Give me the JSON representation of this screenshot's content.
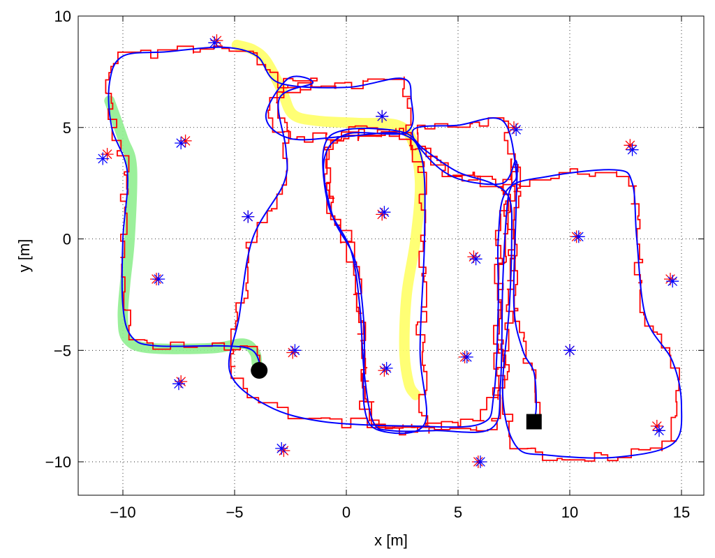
{
  "chart_data": {
    "type": "scatter",
    "xlabel": "x [m]",
    "ylabel": "y [m]",
    "xlim": [
      -12,
      16
    ],
    "ylim": [
      -11.5,
      10
    ],
    "grid": "dotted",
    "xticks": [
      -10,
      -5,
      0,
      5,
      10,
      15
    ],
    "yticks": [
      -10,
      -5,
      0,
      5,
      10
    ],
    "xtick_labels": [
      "−10",
      "−5",
      "0",
      "5",
      "10",
      "15"
    ],
    "ytick_labels": [
      "−10",
      "−5",
      "0",
      "5",
      "10"
    ],
    "colors": {
      "estimate": "#ff0000",
      "ground_truth": "#0000ff",
      "highlight_green": "#90ee90",
      "highlight_yellow": "#ffff66",
      "markers": "#000000"
    },
    "landmarks_blue": [
      [
        -5.9,
        8.8
      ],
      [
        -10.9,
        3.6
      ],
      [
        -7.4,
        4.3
      ],
      [
        -4.4,
        1.0
      ],
      [
        -8.4,
        -1.8
      ],
      [
        -7.5,
        -6.5
      ],
      [
        -2.9,
        -9.4
      ],
      [
        -2.3,
        -5.0
      ],
      [
        1.6,
        5.5
      ],
      [
        1.7,
        1.2
      ],
      [
        1.8,
        -5.8
      ],
      [
        5.8,
        -0.9
      ],
      [
        7.6,
        4.9
      ],
      [
        5.4,
        -5.3
      ],
      [
        6.0,
        -10.0
      ],
      [
        12.8,
        4.0
      ],
      [
        10.4,
        0.1
      ],
      [
        14.6,
        -1.9
      ],
      [
        10.0,
        -5.0
      ],
      [
        14.0,
        -8.6
      ]
    ],
    "landmarks_red": [
      [
        -5.8,
        8.9
      ],
      [
        -10.7,
        3.8
      ],
      [
        -7.2,
        4.4
      ],
      [
        -4.4,
        1.0
      ],
      [
        -8.5,
        -1.8
      ],
      [
        -7.4,
        -6.4
      ],
      [
        -2.8,
        -9.5
      ],
      [
        -2.4,
        -5.1
      ],
      [
        1.6,
        5.5
      ],
      [
        1.6,
        1.1
      ],
      [
        1.7,
        -5.9
      ],
      [
        5.7,
        -0.8
      ],
      [
        7.5,
        5.0
      ],
      [
        5.3,
        -5.3
      ],
      [
        5.9,
        -10.0
      ],
      [
        12.7,
        4.2
      ],
      [
        10.3,
        0.1
      ],
      [
        14.5,
        -1.8
      ],
      [
        10.0,
        -5.0
      ],
      [
        13.9,
        -8.4
      ]
    ],
    "ground_truth_path": [
      [
        -3.8,
        -5.9
      ],
      [
        -4.2,
        -5.0
      ],
      [
        -5.5,
        -4.8
      ],
      [
        -8.5,
        -4.8
      ],
      [
        -9.6,
        -4.4
      ],
      [
        -10.0,
        -3.0
      ],
      [
        -10.0,
        0.0
      ],
      [
        -9.8,
        3.0
      ],
      [
        -10.5,
        5.0
      ],
      [
        -10.6,
        7.0
      ],
      [
        -10.0,
        8.2
      ],
      [
        -8.0,
        8.4
      ],
      [
        -5.5,
        8.6
      ],
      [
        -4.0,
        8.2
      ],
      [
        -3.0,
        7.0
      ],
      [
        0.0,
        6.8
      ],
      [
        2.5,
        7.2
      ],
      [
        2.9,
        6.3
      ],
      [
        2.7,
        4.8
      ],
      [
        0.0,
        4.7
      ],
      [
        -1.0,
        3.5
      ],
      [
        -0.6,
        1.0
      ],
      [
        0.4,
        -1.0
      ],
      [
        0.8,
        -4.0
      ],
      [
        0.8,
        -7.5
      ],
      [
        1.5,
        -8.6
      ],
      [
        3.5,
        -8.3
      ],
      [
        3.3,
        -5.0
      ],
      [
        3.5,
        0.0
      ],
      [
        3.4,
        3.5
      ],
      [
        2.5,
        4.7
      ],
      [
        0.0,
        4.6
      ],
      [
        -2.5,
        4.5
      ],
      [
        -3.6,
        5.5
      ],
      [
        -2.6,
        7.2
      ],
      [
        -1.5,
        7.0
      ],
      [
        -3.0,
        6.3
      ],
      [
        -2.7,
        4.0
      ],
      [
        -2.8,
        2.5
      ],
      [
        -4.2,
        0.0
      ],
      [
        -4.8,
        -3.5
      ],
      [
        -5.2,
        -6.0
      ],
      [
        -3.5,
        -7.5
      ],
      [
        -1.0,
        -8.2
      ],
      [
        3.0,
        -8.4
      ],
      [
        6.0,
        -8.3
      ],
      [
        6.6,
        -7.0
      ],
      [
        6.8,
        -3.0
      ],
      [
        6.8,
        0.0
      ],
      [
        7.2,
        2.2
      ],
      [
        9.0,
        2.8
      ],
      [
        12.0,
        3.1
      ],
      [
        12.8,
        2.5
      ],
      [
        13.0,
        0.0
      ],
      [
        13.4,
        -3.5
      ],
      [
        14.6,
        -5.5
      ],
      [
        15.0,
        -7.5
      ],
      [
        14.6,
        -9.2
      ],
      [
        12.0,
        -9.8
      ],
      [
        9.0,
        -9.7
      ],
      [
        7.6,
        -9.3
      ],
      [
        7.0,
        -7.0
      ],
      [
        7.3,
        -3.0
      ],
      [
        7.4,
        0.0
      ],
      [
        7.3,
        1.8
      ],
      [
        6.5,
        2.5
      ],
      [
        5.0,
        3.0
      ],
      [
        3.5,
        4.0
      ],
      [
        2.5,
        4.8
      ],
      [
        0.0,
        4.9
      ],
      [
        -1.0,
        4.1
      ],
      [
        -0.8,
        1.5
      ],
      [
        0.2,
        -0.5
      ],
      [
        0.6,
        -3.0
      ],
      [
        0.8,
        -6.0
      ],
      [
        1.2,
        -8.2
      ],
      [
        2.0,
        -8.6
      ],
      [
        4.0,
        -8.6
      ],
      [
        6.5,
        -8.5
      ],
      [
        6.9,
        -6.5
      ],
      [
        7.0,
        -2.0
      ],
      [
        7.2,
        1.5
      ],
      [
        7.4,
        2.4
      ],
      [
        7.6,
        3.0
      ],
      [
        7.0,
        5.3
      ],
      [
        5.0,
        5.1
      ],
      [
        3.0,
        4.9
      ],
      [
        3.7,
        3.6
      ],
      [
        5.0,
        2.7
      ],
      [
        7.0,
        2.5
      ],
      [
        7.6,
        3.5
      ],
      [
        7.6,
        1.5
      ],
      [
        7.5,
        -3.0
      ],
      [
        7.9,
        -5.0
      ],
      [
        8.4,
        -6.0
      ],
      [
        8.5,
        -7.5
      ],
      [
        8.4,
        -8.2
      ]
    ],
    "green_band": [
      [
        -10.6,
        6.2
      ],
      [
        -10.0,
        4.5
      ],
      [
        -9.6,
        3.2
      ],
      [
        -9.7,
        0.0
      ],
      [
        -9.9,
        -2.0
      ],
      [
        -10.0,
        -3.5
      ],
      [
        -9.8,
        -4.5
      ],
      [
        -8.8,
        -4.9
      ],
      [
        -6.0,
        -4.9
      ],
      [
        -4.6,
        -4.7
      ],
      [
        -4.1,
        -5.1
      ],
      [
        -4.0,
        -5.6
      ]
    ],
    "yellow_band": [
      [
        -4.9,
        8.7
      ],
      [
        -4.2,
        8.5
      ],
      [
        -3.6,
        8.0
      ],
      [
        -2.9,
        6.7
      ],
      [
        -2.4,
        5.6
      ],
      [
        -1.3,
        5.3
      ],
      [
        0.5,
        5.2
      ],
      [
        2.3,
        5.1
      ],
      [
        3.0,
        4.3
      ],
      [
        3.3,
        2.5
      ],
      [
        3.1,
        0.0
      ],
      [
        2.7,
        -2.5
      ],
      [
        2.6,
        -5.0
      ],
      [
        2.8,
        -6.5
      ],
      [
        3.1,
        -7.0
      ]
    ],
    "start_marker": [
      -3.9,
      -5.9
    ],
    "end_marker": [
      8.4,
      -8.2
    ]
  }
}
